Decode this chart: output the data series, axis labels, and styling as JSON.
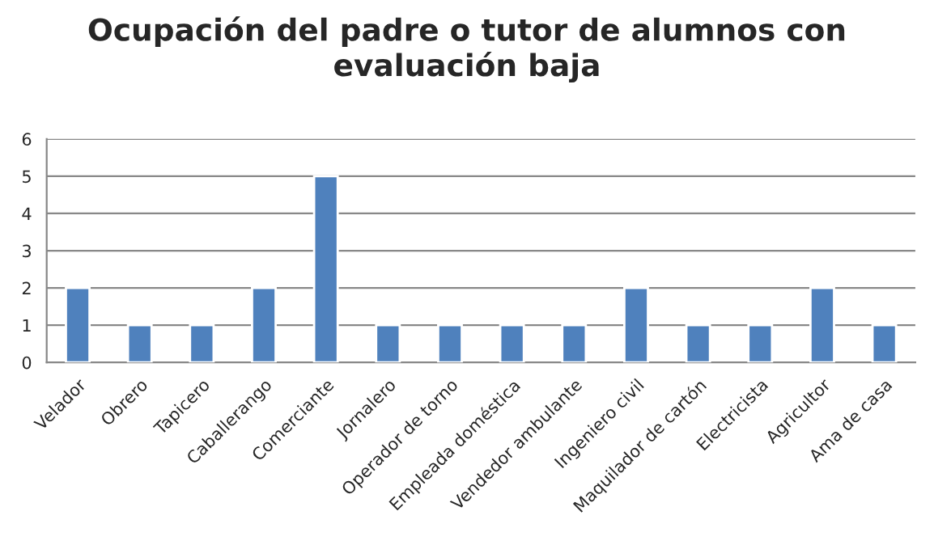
{
  "chart_data": {
    "type": "bar",
    "title": "Ocupación del padre o tutor de alumnos con evaluación baja",
    "categories": [
      "Velador",
      "Obrero",
      "Tapicero",
      "Caballerango",
      "Comerciante",
      "Jornalero",
      "Operador de torno",
      "Empleada doméstica",
      "Vendedor ambulante",
      "Ingeniero civil",
      "Maquilador de cartón",
      "Electricista",
      "Agricultor",
      "Ama de casa"
    ],
    "values": [
      2,
      1,
      1,
      2,
      5,
      1,
      1,
      1,
      1,
      2,
      1,
      1,
      2,
      1
    ],
    "color": "#4f81bd",
    "ylim": [
      0,
      6
    ],
    "yticks": [
      0,
      1,
      2,
      3,
      4,
      5,
      6
    ],
    "grid": "y",
    "legend": false
  }
}
